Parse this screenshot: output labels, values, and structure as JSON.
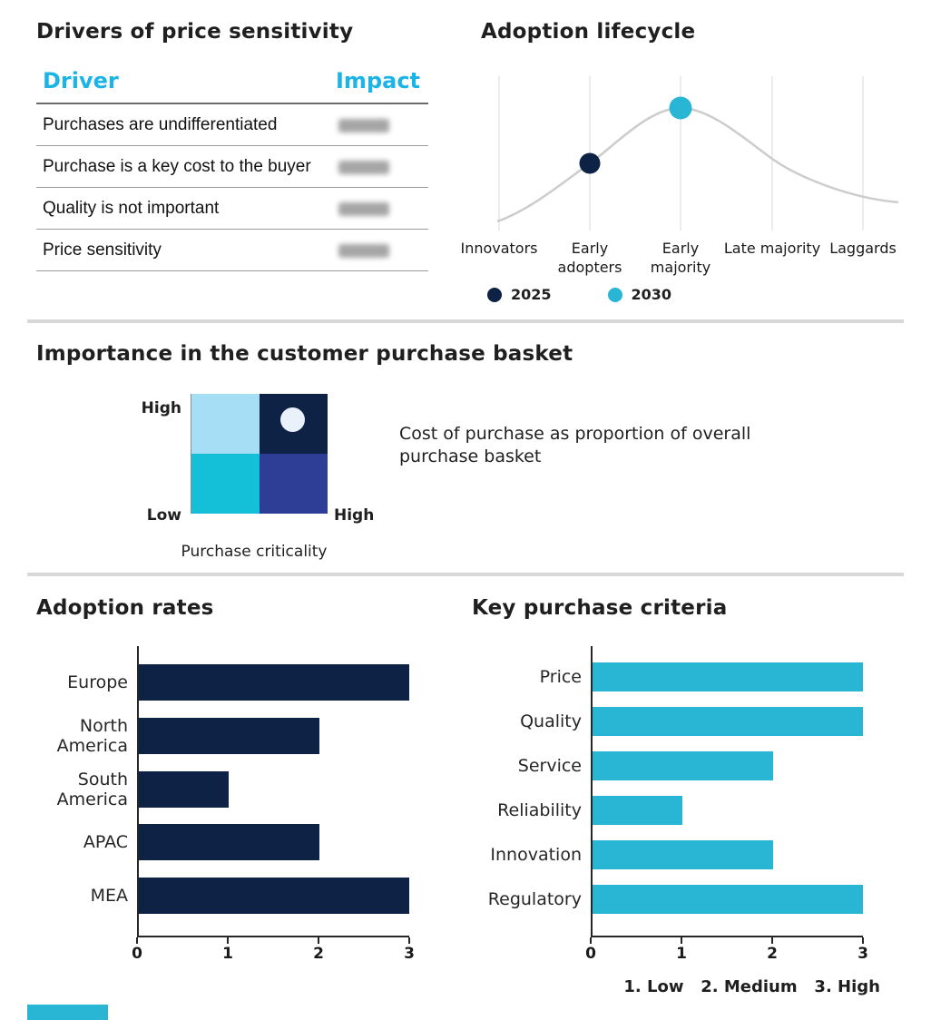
{
  "accent_bar": {
    "color": "#29B6D4"
  },
  "colors": {
    "navy": "#0E2246",
    "cyan": "#29B6D4",
    "cyan_header_text": "#1CB4E6",
    "indigo": "#2E3E96",
    "light_blue": "#A6DEF5",
    "pale_marker": "#E9F1FA",
    "curve_gray": "#CCCCCC",
    "divider_gray": "#D8D8D8"
  },
  "chart_data": [
    {
      "type": "table",
      "title": "Drivers of price sensitivity",
      "columns": [
        "Driver",
        "Impact"
      ],
      "rows": [
        [
          "Purchases are undifferentiated",
          null
        ],
        [
          "Purchase is a key cost to the buyer",
          null
        ],
        [
          "Quality is not important",
          null
        ],
        [
          "Price sensitivity",
          null
        ]
      ],
      "note": "Impact column values are blurred/illegible in the image"
    },
    {
      "type": "line",
      "title": "Adoption lifecycle",
      "categories": [
        "Innovators",
        "Early adopters",
        "Early majority",
        "Late majority",
        "Laggards"
      ],
      "curve": "gray bell curve peaking at Early majority",
      "points": [
        {
          "name": "2025",
          "x": "Early adopters",
          "color": "#0E2246"
        },
        {
          "name": "2030",
          "x": "Early majority",
          "color": "#29B6D4"
        }
      ],
      "legend_position": "bottom",
      "grid": "vertical gridlines at each category"
    },
    {
      "type": "heatmap",
      "title": "Importance in the customer purchase basket",
      "xlabel": "Purchase criticality",
      "x_range": [
        "Low",
        "High"
      ],
      "y_range": [
        "Low",
        "High"
      ],
      "quadrant_colors": {
        "top_left": "#A6DEF5",
        "top_right": "#0E2246",
        "bottom_left": "#14C0D8",
        "bottom_right": "#2E3E96"
      },
      "marker": {
        "quadrant": "top_right",
        "color": "#E9F1FA"
      },
      "annotation": "Cost of purchase as proportion of overall purchase basket"
    },
    {
      "type": "bar",
      "title": "Adoption rates",
      "orientation": "horizontal",
      "categories": [
        "Europe",
        "North America",
        "South America",
        "APAC",
        "MEA"
      ],
      "values": [
        3,
        2,
        1,
        2,
        3
      ],
      "xlim": [
        0,
        3
      ],
      "xticks": [
        0,
        1,
        2,
        3
      ],
      "bar_color": "#0E2246",
      "grid": "off"
    },
    {
      "type": "bar",
      "title": "Key purchase criteria",
      "orientation": "horizontal",
      "categories": [
        "Price",
        "Quality",
        "Service",
        "Reliability",
        "Innovation",
        "Regulatory"
      ],
      "values": [
        3,
        3,
        2,
        1,
        2,
        3
      ],
      "xlim": [
        0,
        3
      ],
      "xticks": [
        0,
        1,
        2,
        3
      ],
      "bar_color": "#29B6D4",
      "grid": "off",
      "footnote": "1. Low   2. Medium   3. High"
    }
  ]
}
